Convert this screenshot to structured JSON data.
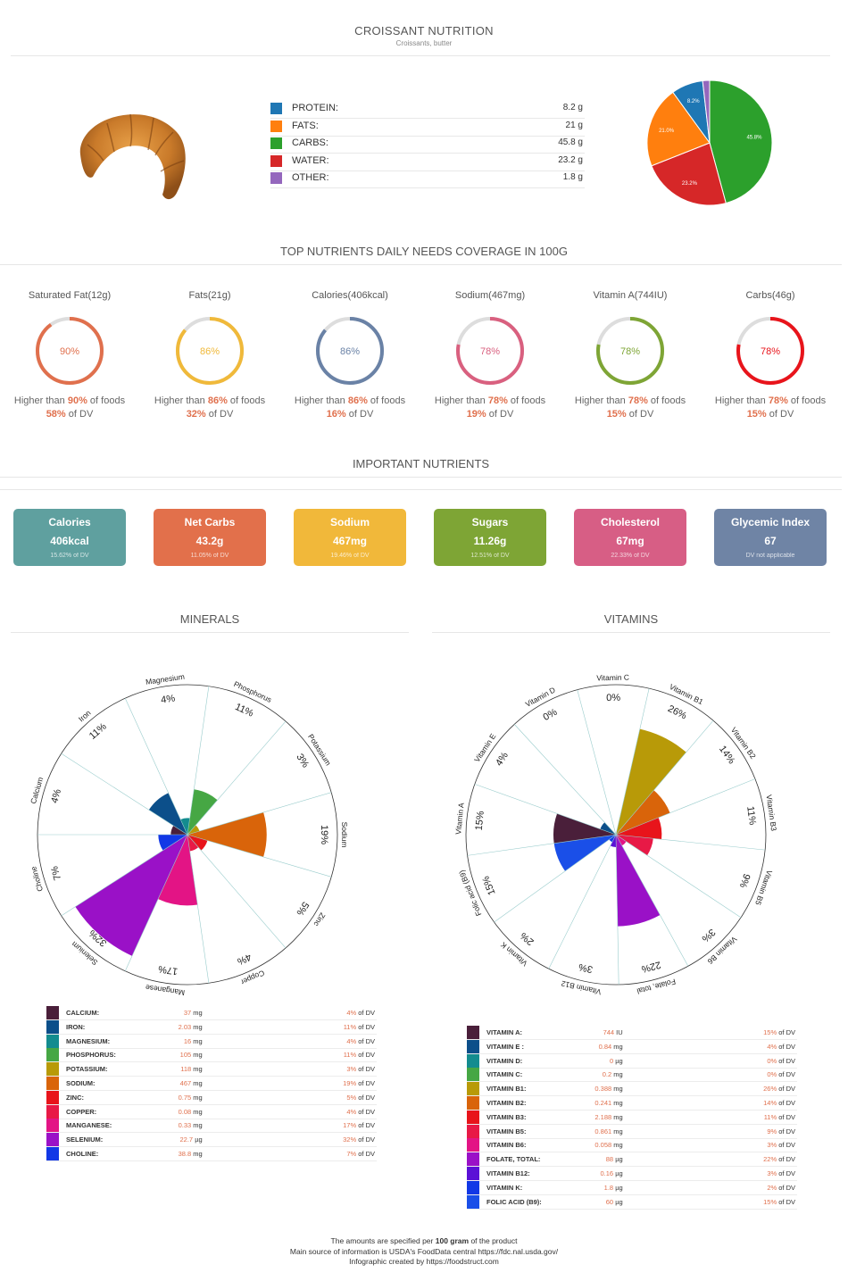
{
  "header": {
    "title": "CROISSANT NUTRITION",
    "subtitle": "Croissants, butter"
  },
  "macros": [
    {
      "name": "PROTEIN:",
      "value": "8.2 g",
      "color": "#1f77b4",
      "grams": 8.2,
      "pct_label": "8.2%"
    },
    {
      "name": "FATS:",
      "value": "21 g",
      "color": "#ff7f0e",
      "grams": 21,
      "pct_label": "21.0%"
    },
    {
      "name": "CARBS:",
      "value": "45.8 g",
      "color": "#2ca02c",
      "grams": 45.8,
      "pct_label": "45.8%"
    },
    {
      "name": "WATER:",
      "value": "23.2 g",
      "color": "#d62728",
      "grams": 23.2,
      "pct_label": "23.2%"
    },
    {
      "name": "OTHER:",
      "value": "1.8 g",
      "color": "#9467bd",
      "grams": 1.8,
      "pct_label": ""
    }
  ],
  "coverage": {
    "title": "TOP NUTRIENTS DAILY NEEDS COVERAGE IN 100G",
    "higher_text": "Higher than",
    "of_foods": "of foods",
    "of_dv": "of DV",
    "items": [
      {
        "label": "Saturated Fat(12g)",
        "pct": 90,
        "pct_label": "90%",
        "dv": "58%",
        "color": "#e0704d"
      },
      {
        "label": "Fats(21g)",
        "pct": 86,
        "pct_label": "86%",
        "dv": "32%",
        "color": "#f0b93a"
      },
      {
        "label": "Calories(406kcal)",
        "pct": 86,
        "pct_label": "86%",
        "dv": "16%",
        "color": "#6a82a6"
      },
      {
        "label": "Sodium(467mg)",
        "pct": 78,
        "pct_label": "78%",
        "dv": "19%",
        "color": "#d9607f"
      },
      {
        "label": "Vitamin A(744IU)",
        "pct": 78,
        "pct_label": "78%",
        "dv": "15%",
        "color": "#7ea535"
      },
      {
        "label": "Carbs(46g)",
        "pct": 78,
        "pct_label": "78%",
        "dv": "15%",
        "color": "#e8141b"
      }
    ]
  },
  "important": {
    "title": "IMPORTANT NUTRIENTS",
    "cards": [
      {
        "label": "Calories",
        "value": "406kcal",
        "dv": "15.62% of DV",
        "color": "#5fa09f"
      },
      {
        "label": "Net Carbs",
        "value": "43.2g",
        "dv": "11.05% of DV",
        "color": "#e2704b"
      },
      {
        "label": "Sodium",
        "value": "467mg",
        "dv": "19.46% of DV",
        "color": "#f1b83a"
      },
      {
        "label": "Sugars",
        "value": "11.26g",
        "dv": "12.51% of DV",
        "color": "#7ea535"
      },
      {
        "label": "Cholesterol",
        "value": "67mg",
        "dv": "22.33% of DV",
        "color": "#d75e85"
      },
      {
        "label": "Glycemic Index",
        "value": "67",
        "dv": "DV not applicable",
        "color": "#6f84a5"
      }
    ]
  },
  "minerals": {
    "title": "MINERALS",
    "of_dv": "of DV",
    "items": [
      {
        "name": "CALCIUM:",
        "label": "Calcium",
        "amount": "37",
        "unit": "mg",
        "dv": 4,
        "color": "#4a1f3a"
      },
      {
        "name": "IRON:",
        "label": "Iron",
        "amount": "2.03",
        "unit": "mg",
        "dv": 11,
        "color": "#0c4f8a"
      },
      {
        "name": "MAGNESIUM:",
        "label": "Magnesium",
        "amount": "16",
        "unit": "mg",
        "dv": 4,
        "color": "#138c8f"
      },
      {
        "name": "PHOSPHORUS:",
        "label": "Phosphorus",
        "amount": "105",
        "unit": "mg",
        "dv": 11,
        "color": "#46a744"
      },
      {
        "name": "POTASSIUM:",
        "label": "Potassium",
        "amount": "118",
        "unit": "mg",
        "dv": 3,
        "color": "#b89a08"
      },
      {
        "name": "SODIUM:",
        "label": "Sodium",
        "amount": "467",
        "unit": "mg",
        "dv": 19,
        "color": "#d9640a"
      },
      {
        "name": "ZINC:",
        "label": "Zinc",
        "amount": "0.75",
        "unit": "mg",
        "dv": 5,
        "color": "#e8141b"
      },
      {
        "name": "COPPER:",
        "label": "Copper",
        "amount": "0.08",
        "unit": "mg",
        "dv": 4,
        "color": "#e81946"
      },
      {
        "name": "MANGANESE:",
        "label": "Manganese",
        "amount": "0.33",
        "unit": "mg",
        "dv": 17,
        "color": "#e31485"
      },
      {
        "name": "SELENIUM:",
        "label": "Selenium",
        "amount": "22.7",
        "unit": "µg",
        "dv": 32,
        "color": "#9a11c7"
      },
      {
        "name": "CHOLINE:",
        "label": "Choline",
        "amount": "38.8",
        "unit": "mg",
        "dv": 7,
        "color": "#1238e6"
      }
    ]
  },
  "vitamins": {
    "title": "VITAMINS",
    "of_dv": "of DV",
    "items": [
      {
        "name": "VITAMIN A:",
        "label": "Vitamin A",
        "amount": "744",
        "unit": "IU",
        "dv": 15,
        "color": "#4a1f3a"
      },
      {
        "name": "VITAMIN E :",
        "label": "Vitamin E",
        "amount": "0.84",
        "unit": "mg",
        "dv": 4,
        "color": "#0c4f8a"
      },
      {
        "name": "VITAMIN D:",
        "label": "Vitamin D",
        "amount": "0",
        "unit": "µg",
        "dv": 0,
        "color": "#138c8f"
      },
      {
        "name": "VITAMIN C:",
        "label": "Vitamin C",
        "amount": "0.2",
        "unit": "mg",
        "dv": 0,
        "color": "#46a744"
      },
      {
        "name": "VITAMIN B1:",
        "label": "Vitamin B1",
        "amount": "0.388",
        "unit": "mg",
        "dv": 26,
        "color": "#b89a08"
      },
      {
        "name": "VITAMIN B2:",
        "label": "Vitamin B2",
        "amount": "0.241",
        "unit": "mg",
        "dv": 14,
        "color": "#d9640a"
      },
      {
        "name": "VITAMIN B3:",
        "label": "Vitamin B3",
        "amount": "2.188",
        "unit": "mg",
        "dv": 11,
        "color": "#e8141b"
      },
      {
        "name": "VITAMIN B5:",
        "label": "Vitamin B5",
        "amount": "0.861",
        "unit": "mg",
        "dv": 9,
        "color": "#e81946"
      },
      {
        "name": "VITAMIN B6:",
        "label": "Vitamin B6",
        "amount": "0.058",
        "unit": "mg",
        "dv": 3,
        "color": "#e31485"
      },
      {
        "name": "FOLATE, TOTAL:",
        "label": "Folate, total",
        "amount": "88",
        "unit": "µg",
        "dv": 22,
        "color": "#9a11c7"
      },
      {
        "name": "VITAMIN B12:",
        "label": "Vitamin B12",
        "amount": "0.16",
        "unit": "µg",
        "dv": 3,
        "color": "#5b11d6"
      },
      {
        "name": "VITAMIN K:",
        "label": "Vitamin K",
        "amount": "1.8",
        "unit": "µg",
        "dv": 2,
        "color": "#1238e6"
      },
      {
        "name": "FOLIC ACID (B9):",
        "label": "Folic acid (B9)",
        "amount": "60",
        "unit": "µg",
        "dv": 15,
        "color": "#1a4fe8"
      }
    ]
  },
  "chart_data": [
    {
      "type": "pie",
      "categories": [
        "Protein",
        "Fats",
        "Carbs",
        "Water",
        "Other"
      ],
      "values": [
        8.2,
        21,
        45.8,
        23.2,
        1.8
      ],
      "labels": [
        "8.2%",
        "21.0%",
        "45.8%",
        "23.2%",
        ""
      ]
    },
    {
      "type": "bar",
      "polar": true,
      "title": "MINERALS",
      "categories": [
        "Calcium",
        "Iron",
        "Magnesium",
        "Phosphorus",
        "Potassium",
        "Sodium",
        "Zinc",
        "Copper",
        "Manganese",
        "Selenium",
        "Choline"
      ],
      "values": [
        4,
        11,
        4,
        11,
        3,
        19,
        5,
        4,
        17,
        32,
        7
      ]
    },
    {
      "type": "bar",
      "polar": true,
      "title": "VITAMINS",
      "categories": [
        "Vitamin A",
        "Vitamin E",
        "Vitamin D",
        "Vitamin C",
        "Vitamin B1",
        "Vitamin B2",
        "Vitamin B3",
        "Vitamin B5",
        "Vitamin B6",
        "Folate, total",
        "Vitamin B12",
        "Vitamin K",
        "Folic acid (B9)"
      ],
      "values": [
        15,
        4,
        0,
        0,
        26,
        14,
        11,
        9,
        3,
        22,
        3,
        2,
        15
      ]
    }
  ],
  "footer": {
    "line1_prefix": "The amounts are specified per",
    "line1_bold": "100 gram",
    "line1_suffix": "of the product",
    "line2": "Main source of information is USDA's FoodData central https://fdc.nal.usda.gov/",
    "line3": "Infographic created by https://foodstruct.com"
  }
}
